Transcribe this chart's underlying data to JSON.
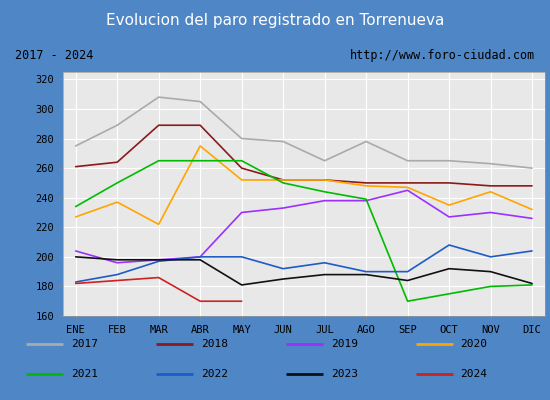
{
  "title": "Evolucion del paro registrado en Torrenueva",
  "title_bg": "#4f86c6",
  "subtitle_left": "2017 - 2024",
  "subtitle_right": "http://www.foro-ciudad.com",
  "months": [
    "ENE",
    "FEB",
    "MAR",
    "ABR",
    "MAY",
    "JUN",
    "JUL",
    "AGO",
    "SEP",
    "OCT",
    "NOV",
    "DIC"
  ],
  "ylim": [
    160,
    325
  ],
  "yticks": [
    160,
    180,
    200,
    220,
    240,
    260,
    280,
    300,
    320
  ],
  "series": {
    "2017": {
      "color": "#aaaaaa",
      "values": [
        275,
        289,
        308,
        305,
        280,
        278,
        265,
        278,
        265,
        265,
        263,
        260
      ]
    },
    "2018": {
      "color": "#8b1a1a",
      "values": [
        261,
        264,
        289,
        289,
        260,
        252,
        252,
        250,
        250,
        250,
        248,
        248
      ]
    },
    "2019": {
      "color": "#9b30ff",
      "values": [
        204,
        196,
        198,
        200,
        230,
        233,
        238,
        238,
        245,
        227,
        230,
        226
      ]
    },
    "2020": {
      "color": "#ffa500",
      "values": [
        227,
        237,
        222,
        275,
        252,
        252,
        252,
        248,
        247,
        235,
        244,
        232
      ]
    },
    "2021": {
      "color": "#00bb00",
      "values": [
        234,
        250,
        265,
        265,
        265,
        250,
        244,
        239,
        170,
        175,
        180,
        181
      ]
    },
    "2022": {
      "color": "#1e5bc6",
      "values": [
        183,
        188,
        197,
        200,
        200,
        192,
        196,
        190,
        190,
        208,
        200,
        204
      ]
    },
    "2023": {
      "color": "#111111",
      "values": [
        200,
        198,
        198,
        198,
        181,
        185,
        188,
        188,
        184,
        192,
        190,
        182
      ]
    },
    "2024": {
      "color": "#cc2222",
      "values": [
        182,
        184,
        186,
        170,
        170,
        null,
        null,
        null,
        null,
        null,
        null,
        null
      ]
    }
  }
}
